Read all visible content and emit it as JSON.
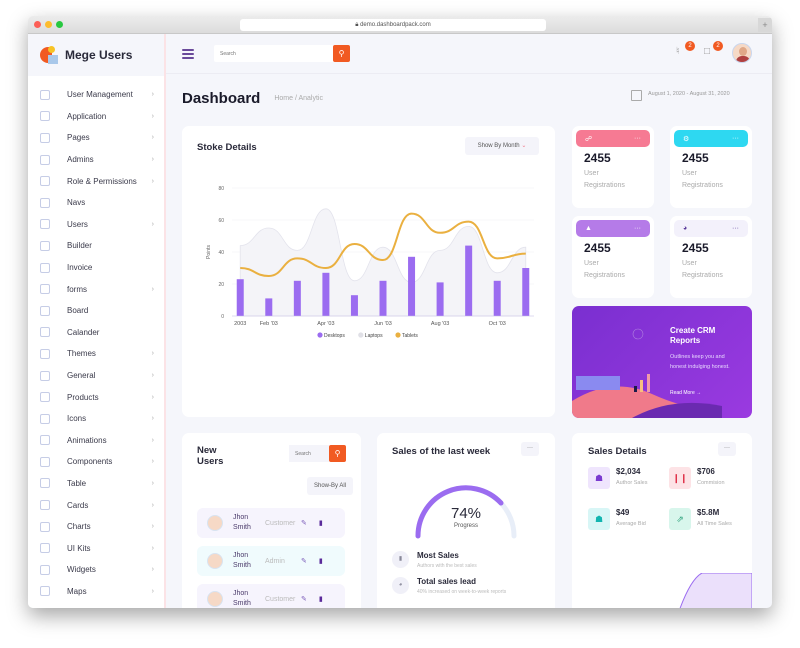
{
  "browser": {
    "url": "demo.dashboardpack.com"
  },
  "sidebar": {
    "brand": "Mege Users",
    "items": [
      {
        "label": "User Management",
        "chevron": true
      },
      {
        "label": "Application",
        "chevron": true
      },
      {
        "label": "Pages",
        "chevron": true
      },
      {
        "label": "Admins",
        "chevron": true
      },
      {
        "label": "Role & Permissions",
        "chevron": true
      },
      {
        "label": "Navs",
        "chevron": false
      },
      {
        "label": "Users",
        "chevron": true
      },
      {
        "label": "Builder",
        "chevron": false
      },
      {
        "label": "Invoice",
        "chevron": false
      },
      {
        "label": "forms",
        "chevron": true
      },
      {
        "label": "Board",
        "chevron": false
      },
      {
        "label": "Calander",
        "chevron": false
      },
      {
        "label": "Themes",
        "chevron": true
      },
      {
        "label": "General",
        "chevron": true
      },
      {
        "label": "Products",
        "chevron": true
      },
      {
        "label": "Icons",
        "chevron": true
      },
      {
        "label": "Animations",
        "chevron": true
      },
      {
        "label": "Components",
        "chevron": true
      },
      {
        "label": "Table",
        "chevron": true
      },
      {
        "label": "Cards",
        "chevron": true
      },
      {
        "label": "Charts",
        "chevron": true
      },
      {
        "label": "UI Kits",
        "chevron": true
      },
      {
        "label": "Widgets",
        "chevron": true
      },
      {
        "label": "Maps",
        "chevron": true
      }
    ]
  },
  "topbar": {
    "search_placeholder": "Search",
    "notifications_count": "2",
    "messages_count": "2"
  },
  "page": {
    "title": "Dashboard",
    "breadcrumb": "Home / Analytic",
    "date_range": "August 1, 2020 - August 31, 2020"
  },
  "stoke": {
    "title": "Stoke Details",
    "filter": "Show By Month",
    "ylabel": "Points"
  },
  "chart_data": {
    "type": "bar",
    "title": "Stoke Details",
    "xlabel": "",
    "ylabel": "Points",
    "ylim": [
      0,
      80
    ],
    "yticks": [
      0,
      20,
      40,
      60,
      80
    ],
    "x_tick_labels": [
      "2003",
      "Feb '03",
      "Apr '03",
      "Jun '03",
      "Aug '03",
      "Oct '03"
    ],
    "categories": [
      "Jan '03",
      "Feb '03",
      "Mar '03",
      "Apr '03",
      "May '03",
      "Jun '03",
      "Jul '03",
      "Aug '03",
      "Sep '03",
      "Oct '03",
      "Nov '03"
    ],
    "series": [
      {
        "name": "Desktops",
        "type": "bar",
        "color": "#9b6cf0",
        "values": [
          23,
          11,
          22,
          27,
          13,
          22,
          37,
          21,
          44,
          22,
          30
        ]
      },
      {
        "name": "Laptops",
        "type": "area",
        "color": "#e6e6ec",
        "values": [
          44,
          55,
          41,
          67,
          22,
          43,
          21,
          41,
          56,
          27,
          43
        ]
      },
      {
        "name": "Tablets",
        "type": "line",
        "color": "#eab040",
        "values": [
          30,
          25,
          36,
          30,
          45,
          35,
          64,
          52,
          59,
          36,
          39
        ]
      }
    ],
    "legend_position": "bottom",
    "grid": true
  },
  "stats": [
    {
      "value": "2455",
      "label": "User Registrations",
      "color": "#f67a93"
    },
    {
      "value": "2455",
      "label": "User Registrations",
      "color": "#2ed8f1"
    },
    {
      "value": "2455",
      "label": "User Registrations",
      "color": "#b57be8"
    },
    {
      "value": "2455",
      "label": "User Registrations",
      "color": "#f3f1fb"
    }
  ],
  "crm": {
    "title": "Create CRM Reports",
    "body": "Outlines keep you and honest indulging honest.",
    "link": "Read More →"
  },
  "new_users": {
    "title": "New Users",
    "search_placeholder": "Search",
    "filter": "Show-By All",
    "rows": [
      {
        "name": "Jhon Smith",
        "role": "Customer"
      },
      {
        "name": "Jhon Smith",
        "role": "Admin"
      },
      {
        "name": "Jhon Smith",
        "role": "Customer"
      }
    ]
  },
  "sales_week": {
    "title": "Sales of the last week",
    "percent": "74%",
    "progress_label": "Progress",
    "items": [
      {
        "title": "Most Sales",
        "sub": "Authors with the best sales"
      },
      {
        "title": "Total sales lead",
        "sub": "40% increased on week-to-week reports"
      }
    ]
  },
  "sales_details": {
    "title": "Sales Details",
    "items": [
      {
        "value": "$2,034",
        "label": "Author Sales"
      },
      {
        "value": "$706",
        "label": "Commision"
      },
      {
        "value": "$49",
        "label": "Average Bid"
      },
      {
        "value": "$5.8M",
        "label": "All Time Sales"
      }
    ]
  }
}
